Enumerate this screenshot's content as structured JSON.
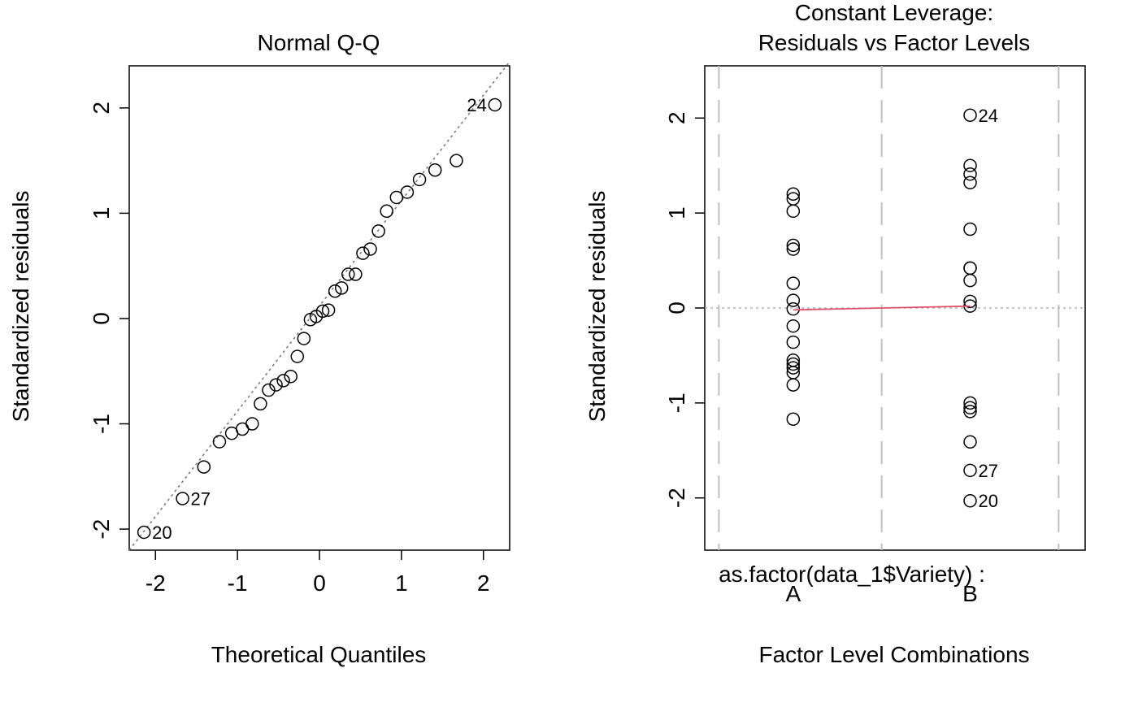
{
  "colors": {
    "frame": "#000000",
    "point_stroke": "#000000",
    "qq_line": "#7a7a7a",
    "zero_line": "#b0b0b0",
    "level_boundary": "#c0c0c0",
    "smooth_line": "#df536b"
  },
  "chart_data": [
    {
      "type": "scatter",
      "title": "Normal Q-Q",
      "xlabel": "Theoretical Quantiles",
      "ylabel": "Standardized residuals",
      "xlim": [
        -2.32,
        2.32
      ],
      "ylim": [
        -2.2,
        2.4
      ],
      "x_ticks": [
        -2,
        -1,
        0,
        1,
        2
      ],
      "x_tick_labels": [
        "-2",
        "-1",
        "0",
        "1",
        "2"
      ],
      "y_ticks": [
        -2,
        -1,
        0,
        1,
        2
      ],
      "y_tick_labels": [
        "-2",
        "-1",
        "0",
        "1",
        "2"
      ],
      "grid": false,
      "reference_line": {
        "style": "dotted",
        "points": [
          [
            -2.32,
            -2.2
          ],
          [
            2.32,
            2.44
          ]
        ]
      },
      "points": [
        {
          "x": -2.14,
          "y": -2.03,
          "label": "20"
        },
        {
          "x": -1.67,
          "y": -1.71,
          "label": "27"
        },
        {
          "x": -1.41,
          "y": -1.41
        },
        {
          "x": -1.22,
          "y": -1.17
        },
        {
          "x": -1.07,
          "y": -1.09
        },
        {
          "x": -0.94,
          "y": -1.05
        },
        {
          "x": -0.82,
          "y": -1.0
        },
        {
          "x": -0.72,
          "y": -0.81
        },
        {
          "x": -0.62,
          "y": -0.68
        },
        {
          "x": -0.53,
          "y": -0.63
        },
        {
          "x": -0.44,
          "y": -0.59
        },
        {
          "x": -0.35,
          "y": -0.55
        },
        {
          "x": -0.27,
          "y": -0.36
        },
        {
          "x": -0.19,
          "y": -0.19
        },
        {
          "x": -0.11,
          "y": -0.01
        },
        {
          "x": -0.04,
          "y": 0.02
        },
        {
          "x": 0.04,
          "y": 0.07
        },
        {
          "x": 0.11,
          "y": 0.08
        },
        {
          "x": 0.19,
          "y": 0.26
        },
        {
          "x": 0.27,
          "y": 0.29
        },
        {
          "x": 0.35,
          "y": 0.42
        },
        {
          "x": 0.44,
          "y": 0.42
        },
        {
          "x": 0.53,
          "y": 0.62
        },
        {
          "x": 0.62,
          "y": 0.66
        },
        {
          "x": 0.72,
          "y": 0.83
        },
        {
          "x": 0.82,
          "y": 1.02
        },
        {
          "x": 0.94,
          "y": 1.15
        },
        {
          "x": 1.07,
          "y": 1.2
        },
        {
          "x": 1.22,
          "y": 1.32
        },
        {
          "x": 1.41,
          "y": 1.41
        },
        {
          "x": 1.67,
          "y": 1.5
        },
        {
          "x": 2.14,
          "y": 2.03,
          "label": "24"
        }
      ]
    },
    {
      "type": "scatter",
      "title": "Constant Leverage:",
      "subtitle": "Residuals vs Factor Levels",
      "xlabel": "Factor Level Combinations",
      "ylabel": "Standardized residuals",
      "factor_label": "as.factor(data_1$Variety) :",
      "xlim": [
        0.5,
        2.65
      ],
      "ylim": [
        -2.55,
        2.55
      ],
      "categories": [
        "A",
        "B"
      ],
      "category_positions": [
        1,
        2
      ],
      "level_boundaries": [
        0.58,
        1.5,
        2.5
      ],
      "y_ticks": [
        -2,
        -1,
        0,
        1,
        2
      ],
      "y_tick_labels": [
        "-2",
        "-1",
        "0",
        "1",
        "2"
      ],
      "grid": false,
      "zero_line": {
        "y": 0,
        "style": "dotted"
      },
      "smooth_line": {
        "points": [
          [
            1,
            -0.02
          ],
          [
            2,
            0.02
          ]
        ]
      },
      "series": [
        {
          "category": "A",
          "values": [
            1.2,
            1.15,
            1.02,
            0.66,
            0.62,
            0.26,
            0.08,
            -0.01,
            -0.19,
            -0.36,
            -0.55,
            -0.59,
            -0.63,
            -0.68,
            -0.81,
            -1.17
          ]
        },
        {
          "category": "B",
          "values": [
            2.03,
            1.5,
            1.41,
            1.32,
            0.83,
            0.42,
            0.42,
            0.29,
            0.07,
            0.02,
            -1.0,
            -1.05,
            -1.09,
            -1.41,
            -1.71,
            -2.03
          ],
          "point_labels": [
            {
              "value": 2.03,
              "label": "24"
            },
            {
              "value": -1.71,
              "label": "27"
            },
            {
              "value": -2.03,
              "label": "20"
            }
          ]
        }
      ]
    }
  ]
}
